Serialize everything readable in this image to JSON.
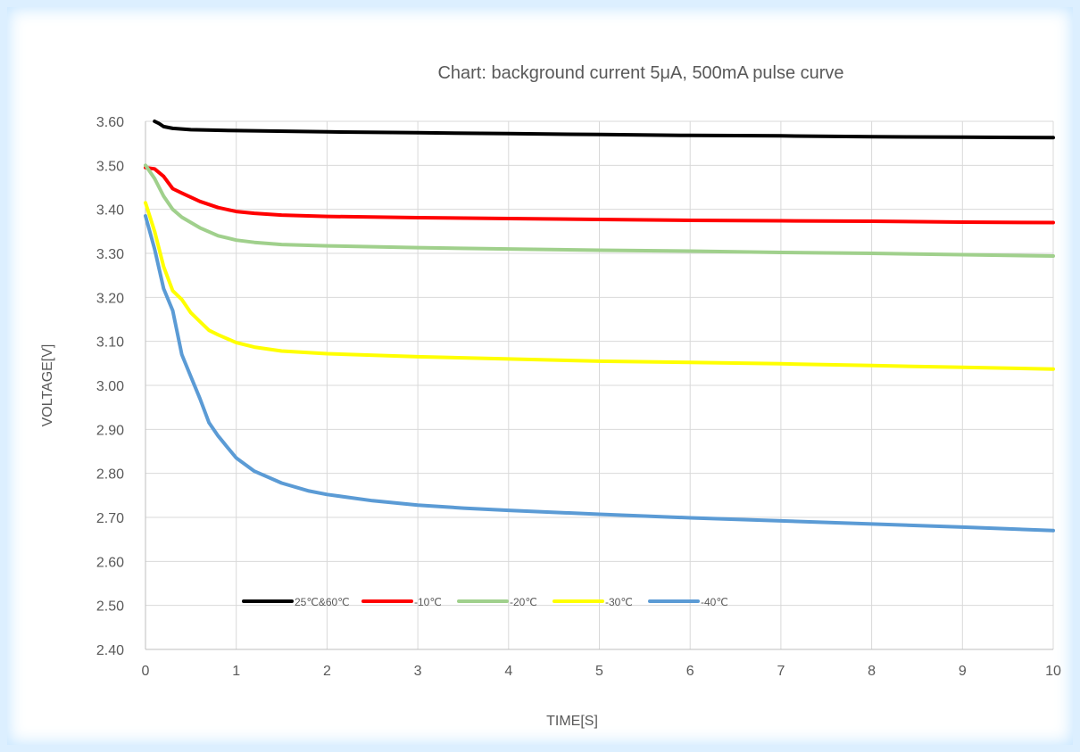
{
  "chart_data": {
    "type": "line",
    "title": "Chart: background current 5μA,  500mA pulse curve",
    "xlabel": "TIME[S]",
    "ylabel": "VOLTAGE[V]",
    "xlim": [
      0,
      10
    ],
    "ylim": [
      2.4,
      3.6
    ],
    "x_ticks": [
      "0",
      "1",
      "2",
      "3",
      "4",
      "5",
      "6",
      "7",
      "8",
      "9",
      "10"
    ],
    "y_ticks": [
      "2.40",
      "2.50",
      "2.60",
      "2.70",
      "2.80",
      "2.90",
      "3.00",
      "3.10",
      "3.20",
      "3.30",
      "3.40",
      "3.50",
      "3.60"
    ],
    "grid": true,
    "legend_position": "bottom-left inside",
    "series": [
      {
        "name": "25℃&60℃",
        "color": "#000000",
        "x": [
          0.1,
          0.15,
          0.2,
          0.3,
          0.5,
          1,
          2,
          3,
          4,
          5,
          6,
          7,
          8,
          9,
          10
        ],
        "y": [
          3.6,
          3.595,
          3.588,
          3.584,
          3.581,
          3.579,
          3.576,
          3.574,
          3.572,
          3.57,
          3.568,
          3.567,
          3.565,
          3.564,
          3.563
        ]
      },
      {
        "name": "-10℃",
        "color": "#ff0000",
        "x": [
          0,
          0.1,
          0.2,
          0.3,
          0.4,
          0.6,
          0.8,
          1,
          1.2,
          1.5,
          2,
          3,
          4,
          5,
          6,
          7,
          8,
          9,
          10
        ],
        "y": [
          3.495,
          3.492,
          3.475,
          3.447,
          3.437,
          3.418,
          3.404,
          3.395,
          3.391,
          3.387,
          3.384,
          3.381,
          3.379,
          3.377,
          3.375,
          3.374,
          3.373,
          3.371,
          3.37
        ]
      },
      {
        "name": "-20℃",
        "color": "#a0d08c",
        "x": [
          0,
          0.1,
          0.2,
          0.3,
          0.4,
          0.6,
          0.8,
          1,
          1.2,
          1.5,
          2,
          3,
          4,
          5,
          6,
          7,
          8,
          9,
          10
        ],
        "y": [
          3.5,
          3.47,
          3.43,
          3.4,
          3.382,
          3.358,
          3.34,
          3.33,
          3.325,
          3.32,
          3.317,
          3.313,
          3.31,
          3.307,
          3.305,
          3.302,
          3.3,
          3.297,
          3.294
        ]
      },
      {
        "name": "-30℃",
        "color": "#ffff00",
        "x": [
          0,
          0.1,
          0.2,
          0.3,
          0.4,
          0.5,
          0.6,
          0.7,
          0.8,
          1,
          1.2,
          1.5,
          2,
          3,
          4,
          5,
          6,
          7,
          8,
          9,
          10
        ],
        "y": [
          3.415,
          3.35,
          3.27,
          3.215,
          3.195,
          3.165,
          3.145,
          3.125,
          3.115,
          3.097,
          3.087,
          3.078,
          3.072,
          3.065,
          3.06,
          3.055,
          3.052,
          3.049,
          3.045,
          3.041,
          3.037
        ]
      },
      {
        "name": "-40℃",
        "color": "#5b9bd5",
        "x": [
          0,
          0.1,
          0.2,
          0.3,
          0.4,
          0.5,
          0.6,
          0.7,
          0.8,
          0.9,
          1,
          1.2,
          1.5,
          1.8,
          2,
          2.5,
          3,
          3.5,
          4,
          5,
          6,
          7,
          8,
          9,
          10
        ],
        "y": [
          3.385,
          3.31,
          3.22,
          3.17,
          3.07,
          3.02,
          2.97,
          2.915,
          2.885,
          2.86,
          2.835,
          2.805,
          2.778,
          2.76,
          2.752,
          2.738,
          2.728,
          2.721,
          2.716,
          2.707,
          2.699,
          2.692,
          2.685,
          2.678,
          2.67
        ]
      }
    ]
  }
}
